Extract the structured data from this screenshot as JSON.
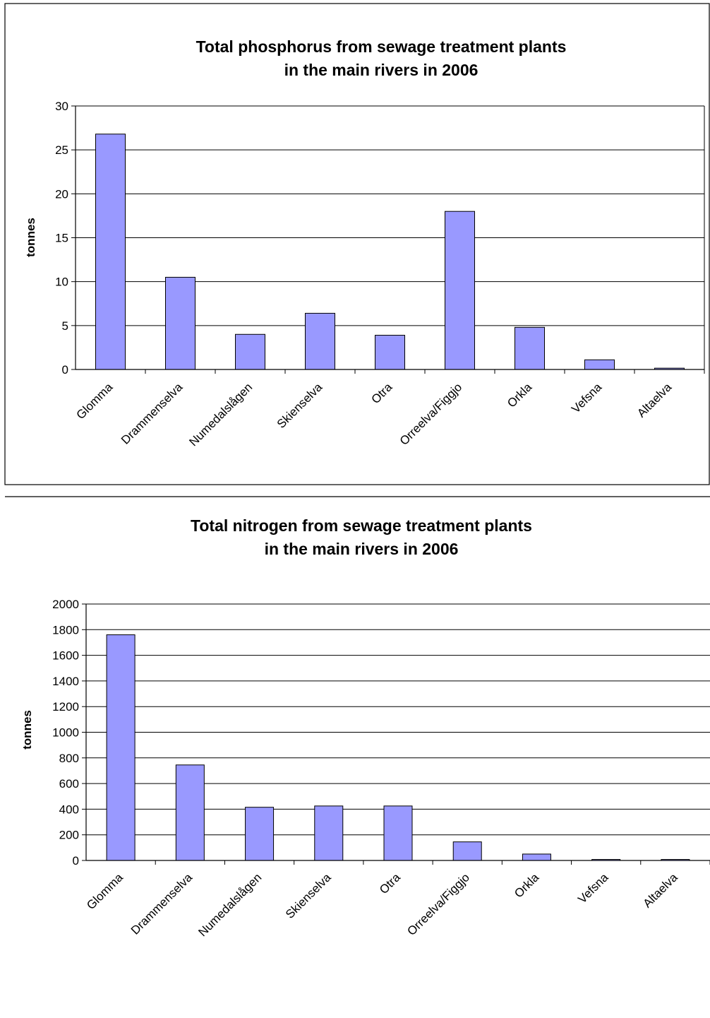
{
  "chart_data": [
    {
      "type": "bar",
      "title": "Total phosphorus from sewage treatment plants",
      "subtitle": "in the main rivers in 2006",
      "ylabel": "tonnes",
      "xlabel": "",
      "ylim": [
        0,
        30
      ],
      "yticks": [
        0,
        5,
        10,
        15,
        20,
        25,
        30
      ],
      "categories": [
        "Glomma",
        "Drammenselva",
        "Numedalslågen",
        "Skienselva",
        "Otra",
        "Orreelva/Figgjo",
        "Orkla",
        "Vefsna",
        "Altaelva"
      ],
      "values": [
        26.8,
        10.5,
        4.0,
        6.4,
        3.9,
        18.0,
        4.8,
        1.1,
        0.15
      ],
      "grid": true,
      "legend": "none",
      "bar_color": "#9999ff"
    },
    {
      "type": "bar",
      "title": "Total nitrogen from sewage treatment plants",
      "subtitle": "in the main rivers in 2006",
      "ylabel": "tonnes",
      "xlabel": "",
      "ylim": [
        0,
        2000
      ],
      "yticks": [
        0,
        200,
        400,
        600,
        800,
        1000,
        1200,
        1400,
        1600,
        1800,
        2000
      ],
      "categories": [
        "Glomma",
        "Drammenselva",
        "Numedalslågen",
        "Skienselva",
        "Otra",
        "Orreelva/Figgjo",
        "Orkla",
        "Vefsna",
        "Altaelva"
      ],
      "values": [
        1760,
        745,
        415,
        425,
        425,
        145,
        50,
        8,
        8
      ],
      "grid": true,
      "legend": "none",
      "bar_color": "#9999ff"
    }
  ]
}
